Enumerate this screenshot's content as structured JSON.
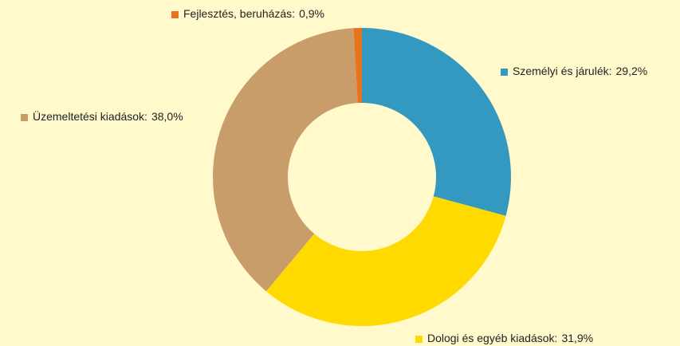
{
  "chart_data": {
    "type": "donut",
    "categories": [
      "Személyi és járulék:",
      "Dologi és egyéb kiadások:",
      "Üzemeltetési kiadások:",
      "Fejlesztés, beruházás:"
    ],
    "values": [
      29.2,
      31.9,
      38.0,
      0.9
    ],
    "value_labels": [
      "29,2%",
      "31,9%",
      "38,0%",
      "0,9%"
    ],
    "colors": [
      "#3399c1",
      "#ffda00",
      "#c89d6a",
      "#e8731f"
    ]
  }
}
